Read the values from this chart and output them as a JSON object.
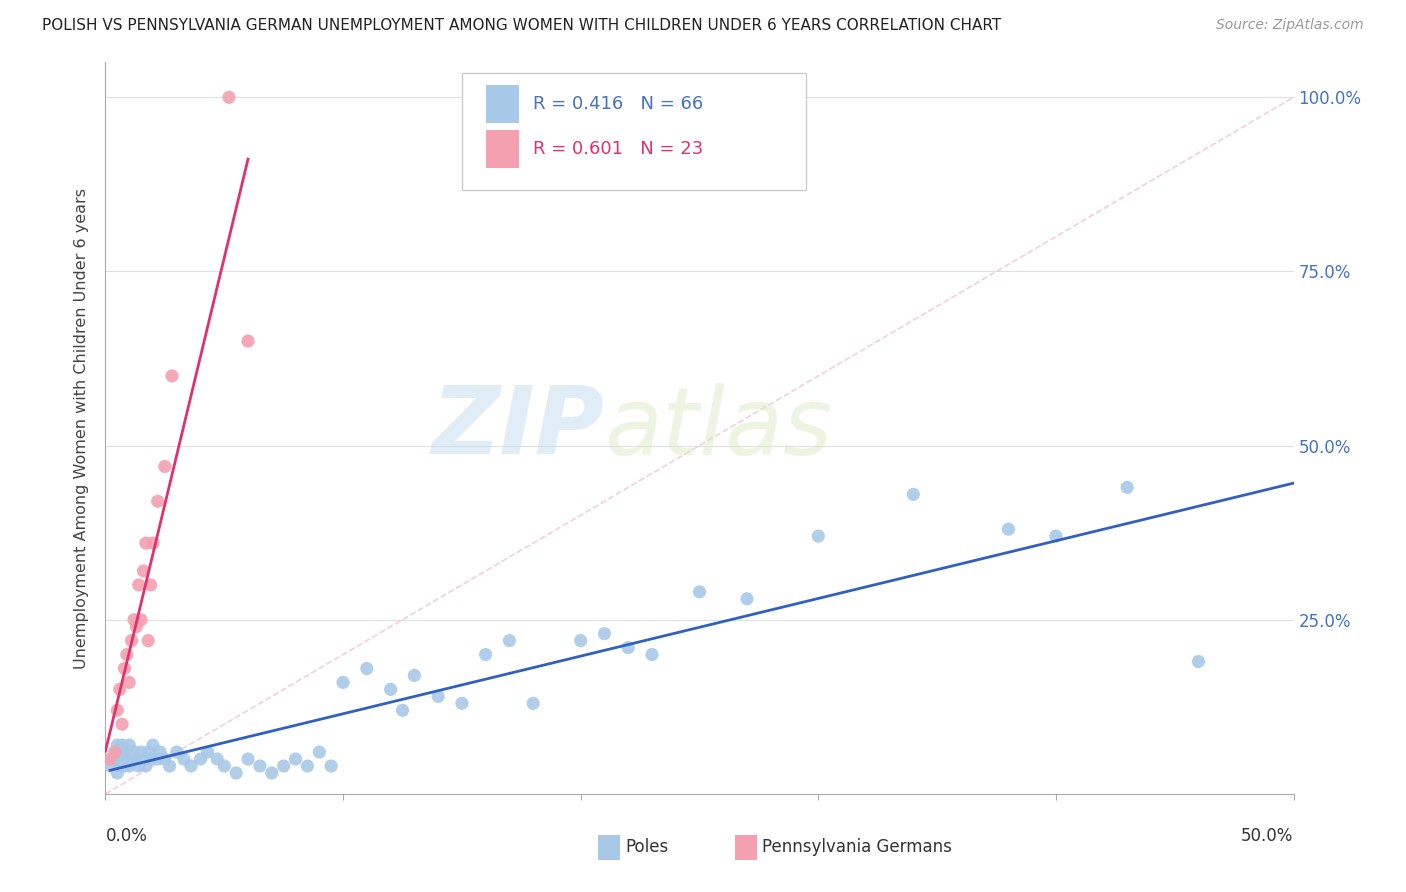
{
  "title": "POLISH VS PENNSYLVANIA GERMAN UNEMPLOYMENT AMONG WOMEN WITH CHILDREN UNDER 6 YEARS CORRELATION CHART",
  "source": "Source: ZipAtlas.com",
  "ylabel": "Unemployment Among Women with Children Under 6 years",
  "xmin": 0.0,
  "xmax": 0.5,
  "ymin": 0.0,
  "ymax": 1.05,
  "yticks": [
    0.0,
    0.25,
    0.5,
    0.75,
    1.0
  ],
  "ytick_labels": [
    "",
    "25.0%",
    "50.0%",
    "75.0%",
    "100.0%"
  ],
  "poles_R": 0.416,
  "poles_N": 66,
  "pg_R": 0.601,
  "pg_N": 23,
  "poles_color": "#a8c8e8",
  "pg_color": "#f4a0b0",
  "poles_line_color": "#3060c0",
  "pg_line_color": "#e03070",
  "watermark_zip": "ZIP",
  "watermark_atlas": "atlas",
  "background_color": "#ffffff",
  "grid_color": "#e0e0e0",
  "poles_x": [
    0.002,
    0.003,
    0.004,
    0.005,
    0.005,
    0.006,
    0.006,
    0.007,
    0.007,
    0.008,
    0.008,
    0.009,
    0.01,
    0.01,
    0.011,
    0.012,
    0.013,
    0.014,
    0.015,
    0.016,
    0.017,
    0.018,
    0.019,
    0.02,
    0.022,
    0.023,
    0.025,
    0.027,
    0.03,
    0.033,
    0.036,
    0.04,
    0.043,
    0.047,
    0.05,
    0.055,
    0.06,
    0.065,
    0.07,
    0.075,
    0.08,
    0.085,
    0.09,
    0.095,
    0.1,
    0.11,
    0.12,
    0.125,
    0.13,
    0.14,
    0.15,
    0.16,
    0.17,
    0.18,
    0.2,
    0.21,
    0.22,
    0.23,
    0.25,
    0.27,
    0.3,
    0.34,
    0.38,
    0.4,
    0.43,
    0.46
  ],
  "poles_y": [
    0.04,
    0.05,
    0.06,
    0.03,
    0.07,
    0.04,
    0.06,
    0.05,
    0.07,
    0.04,
    0.06,
    0.05,
    0.04,
    0.07,
    0.05,
    0.06,
    0.05,
    0.04,
    0.06,
    0.05,
    0.04,
    0.06,
    0.05,
    0.07,
    0.05,
    0.06,
    0.05,
    0.04,
    0.06,
    0.05,
    0.04,
    0.05,
    0.06,
    0.05,
    0.04,
    0.03,
    0.05,
    0.04,
    0.03,
    0.04,
    0.05,
    0.04,
    0.06,
    0.04,
    0.16,
    0.18,
    0.15,
    0.12,
    0.17,
    0.14,
    0.13,
    0.2,
    0.22,
    0.13,
    0.22,
    0.23,
    0.21,
    0.2,
    0.29,
    0.28,
    0.37,
    0.43,
    0.38,
    0.37,
    0.44,
    0.19
  ],
  "pg_x": [
    0.002,
    0.004,
    0.005,
    0.006,
    0.007,
    0.008,
    0.009,
    0.01,
    0.011,
    0.012,
    0.013,
    0.014,
    0.015,
    0.016,
    0.017,
    0.018,
    0.019,
    0.02,
    0.022,
    0.025,
    0.028,
    0.052,
    0.06
  ],
  "pg_y": [
    0.05,
    0.06,
    0.12,
    0.15,
    0.1,
    0.18,
    0.2,
    0.16,
    0.22,
    0.25,
    0.24,
    0.3,
    0.25,
    0.32,
    0.36,
    0.22,
    0.3,
    0.36,
    0.42,
    0.47,
    0.6,
    1.0,
    0.65
  ]
}
